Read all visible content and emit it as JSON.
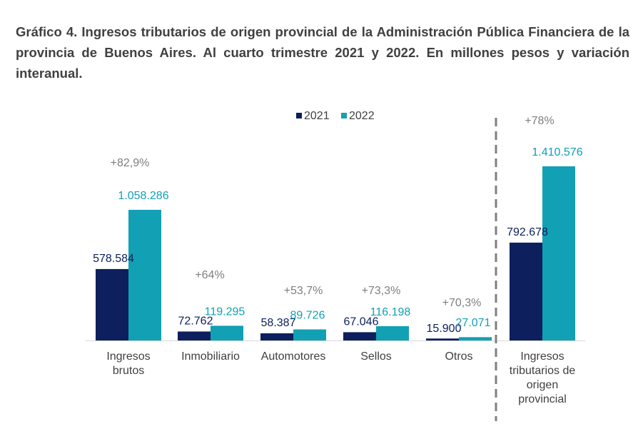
{
  "chart_data": {
    "type": "bar",
    "title": "Gráfico 4. Ingresos tributarios de origen provincial de la Administración Pública Financiera de la provincia de Buenos Aires. Al cuarto trimestre 2021 y 2022. En millones pesos y variación interanual.",
    "categories": [
      [
        "Ingresos",
        "brutos"
      ],
      [
        "Inmobiliario"
      ],
      [
        "Automotores"
      ],
      [
        "Sellos"
      ],
      [
        "Otros"
      ],
      [
        "Ingresos",
        "tributarios de",
        "origen",
        "provincial"
      ]
    ],
    "series": [
      {
        "name": "2021",
        "color": "#0d1f5c",
        "values": [
          578584,
          72762,
          58387,
          67046,
          15900,
          792678
        ],
        "labels": [
          "578.584",
          "72.762",
          "58.387",
          "67.046",
          "15.900",
          "792.678"
        ]
      },
      {
        "name": "2022",
        "color": "#12a0b4",
        "values": [
          1058286,
          119295,
          89726,
          116198,
          27071,
          1410576
        ],
        "labels": [
          "1.058.286",
          "119.295",
          "89.726",
          "116.198",
          "27.071",
          "1.410.576"
        ]
      }
    ],
    "variation": [
      "+82,9%",
      "+64%",
      "+53,7%",
      "+73,3%",
      "+70,3%",
      "+78%"
    ],
    "legend_position": "top-center",
    "grid": false,
    "separator_before_last": true,
    "ylim": [
      0,
      1600000
    ]
  }
}
